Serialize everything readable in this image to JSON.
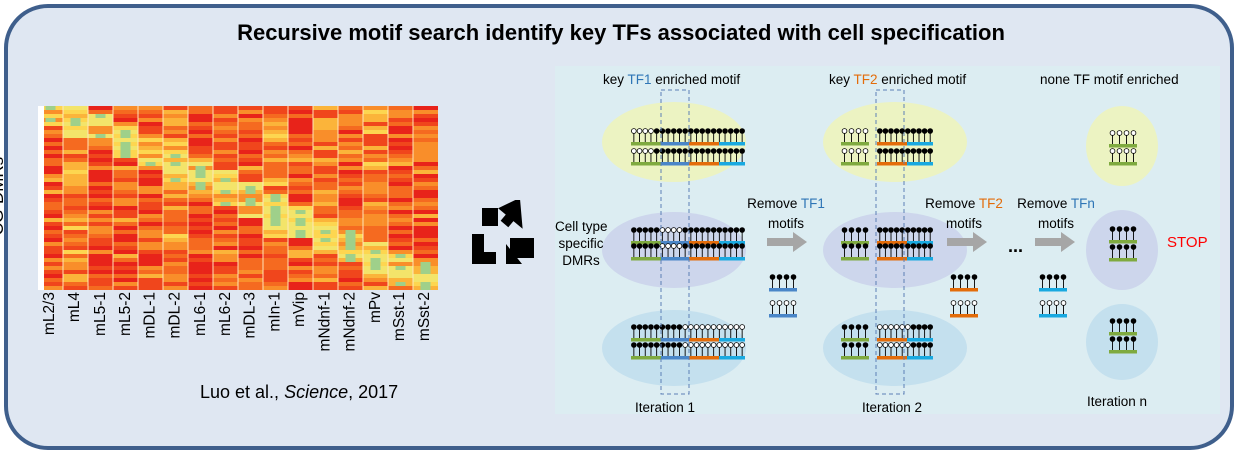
{
  "title": "Recursive motif search identify key TFs associated with cell specification",
  "heatmap": {
    "ylabel": "CG-DMRs",
    "columns": [
      "mL2/3",
      "mL4",
      "mL5-1",
      "mL5-2",
      "mDL-1",
      "mDL-2",
      "mL6-1",
      "mL6-2",
      "mDL-3",
      "mIn-1",
      "mVip",
      "mNdnf-1",
      "mNdnf-2",
      "mPv",
      "mSst-1",
      "mSst-2"
    ]
  },
  "citation": {
    "authors": "Luo et al., ",
    "journal": "Science",
    "year": ", 2017"
  },
  "flow": {
    "headers": {
      "h1_pre": "key ",
      "h1_tf": "TF1",
      "h1_post": " enriched motif",
      "h2_pre": "key ",
      "h2_tf": "TF2",
      "h2_post": " enriched motif",
      "h3": "none TF motif enriched"
    },
    "input_label": {
      "l1": "Cell type",
      "l2": "specific",
      "l3": "DMRs"
    },
    "remove1": {
      "pre": "Remove ",
      "tf": "TF1",
      "l2": "motifs"
    },
    "remove2": {
      "pre": "Remove ",
      "tf": "TF2",
      "l2": "motifs"
    },
    "removen": {
      "pre": "Remove ",
      "tf": "TFn",
      "l2": "motifs"
    },
    "ellipsis": "...",
    "stop": "STOP",
    "iterations": [
      "Iteration 1",
      "Iteration 2",
      "Iteration n"
    ]
  },
  "colors": {
    "frame": "#3f5f8c",
    "green_bar": "#7faa3f",
    "blue_bar": "#4a86c8",
    "orange_bar": "#e36c0a",
    "cyan_bar": "#19a9e0",
    "tf1_text": "#2e75b6",
    "tf2_text": "#e36c0a",
    "stop_text": "#ff0000"
  }
}
